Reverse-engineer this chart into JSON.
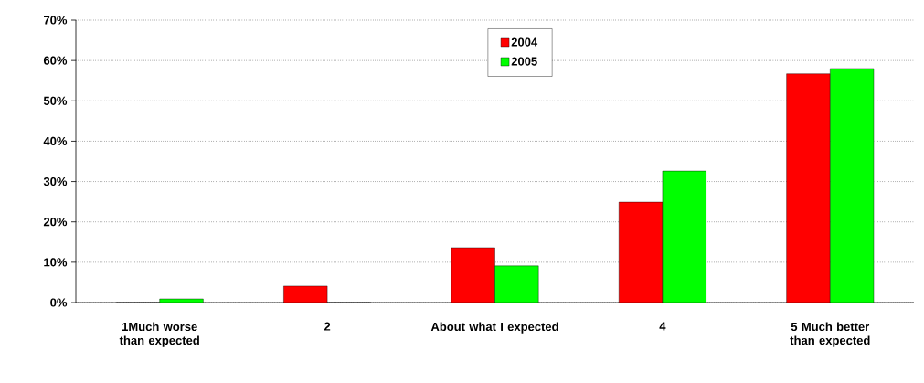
{
  "chart_data": {
    "type": "bar",
    "categories": [
      "1Much worse than expected",
      "2",
      "About what I expected",
      "4",
      "5 Much better than expected"
    ],
    "series": [
      {
        "name": "2004",
        "color": "#ff0000",
        "values": [
          0,
          4.1,
          13.6,
          24.9,
          56.7
        ]
      },
      {
        "name": "2005",
        "color": "#00ff00",
        "values": [
          0.9,
          0,
          9.1,
          32.6,
          58.0
        ]
      }
    ],
    "ylim": [
      0,
      70
    ],
    "yticks": [
      {
        "value": 0,
        "label": "0%"
      },
      {
        "value": 10,
        "label": "10%"
      },
      {
        "value": 20,
        "label": "20%"
      },
      {
        "value": 30,
        "label": "30%"
      },
      {
        "value": 40,
        "label": "40%"
      },
      {
        "value": 50,
        "label": "50%"
      },
      {
        "value": 60,
        "label": "60%"
      },
      {
        "value": 70,
        "label": "70%"
      }
    ],
    "grid": "y",
    "legend": "top"
  }
}
